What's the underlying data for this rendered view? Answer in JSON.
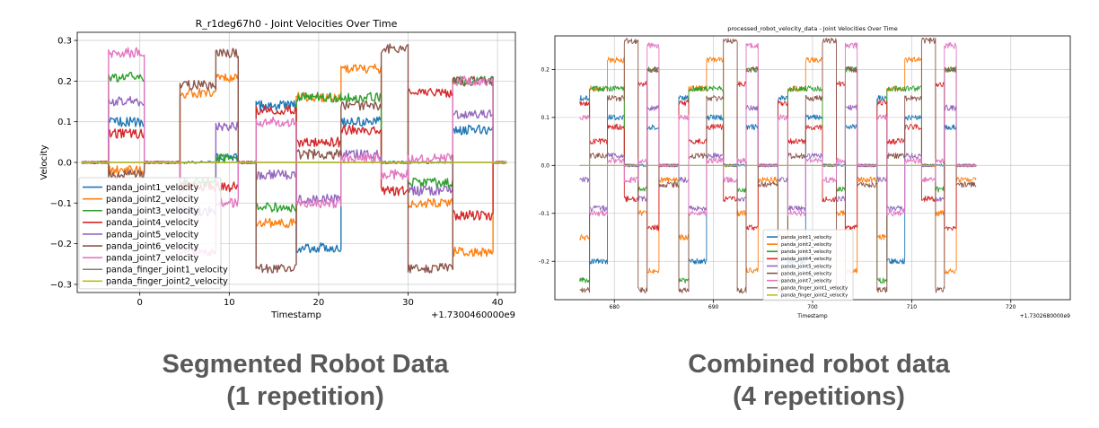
{
  "captions": {
    "left": {
      "line1": "Segmented Robot Data",
      "line2": "(1 repetition)"
    },
    "right": {
      "line1": "Combined robot data",
      "line2": "(4 repetitions)"
    }
  },
  "chart_data": [
    {
      "type": "line",
      "title": "R_r1deg67h0 - Joint Velocities Over Time",
      "xlabel": "Timestamp",
      "ylabel": "Velocity",
      "x_offset_label": "+1.7300460000e9",
      "xlim": [
        -7,
        42
      ],
      "ylim": [
        -0.32,
        0.32
      ],
      "xticks": [
        0,
        10,
        20,
        30,
        40
      ],
      "xtick_labels": [
        "0",
        "10",
        "20",
        "30",
        "40"
      ],
      "yticks": [
        -0.3,
        -0.2,
        -0.1,
        0.0,
        0.1,
        0.2,
        0.3
      ],
      "ytick_labels": [
        "−0.3",
        "−0.2",
        "−0.1",
        "0.0",
        "0.1",
        "0.2",
        "0.3"
      ],
      "grid": true,
      "legend_position": "lower-left",
      "segments": [
        [
          -6.5,
          -3.5
        ],
        [
          -3.5,
          0.5
        ],
        [
          0.5,
          4.5
        ],
        [
          4.5,
          8.5
        ],
        [
          8.5,
          11
        ],
        [
          11,
          13
        ],
        [
          13,
          17.5
        ],
        [
          17.5,
          22.5
        ],
        [
          22.5,
          27
        ],
        [
          27,
          30
        ],
        [
          30,
          35
        ],
        [
          35,
          39.5
        ],
        [
          39.5,
          41
        ]
      ],
      "series": [
        {
          "name": "panda_joint1_velocity",
          "color": "#1f77b4",
          "values": [
            0,
            0.1,
            0,
            0,
            0.01,
            0,
            0.14,
            -0.21,
            0.1,
            0,
            0,
            0.08,
            0
          ]
        },
        {
          "name": "panda_joint2_velocity",
          "color": "#ff7f0e",
          "values": [
            0,
            -0.02,
            0,
            0.17,
            0.21,
            0,
            -0.15,
            0.16,
            0.23,
            0,
            -0.1,
            -0.22,
            0
          ]
        },
        {
          "name": "panda_joint3_velocity",
          "color": "#2ca02c",
          "values": [
            0,
            0.21,
            0,
            -0.05,
            0.01,
            0,
            -0.11,
            0.16,
            0.16,
            0,
            -0.05,
            0.2,
            0
          ]
        },
        {
          "name": "panda_joint4_velocity",
          "color": "#d62728",
          "values": [
            0,
            0.07,
            0,
            -0.06,
            -0.06,
            0,
            0.13,
            0.05,
            0.08,
            -0.07,
            0.17,
            -0.13,
            0
          ]
        },
        {
          "name": "panda_joint5_velocity",
          "color": "#9467bd",
          "values": [
            0,
            0.15,
            0,
            -0.12,
            0.09,
            0,
            -0.03,
            -0.09,
            0.02,
            0,
            -0.07,
            0.12,
            0
          ]
        },
        {
          "name": "panda_joint6_velocity",
          "color": "#8c564b",
          "values": [
            0,
            -0.03,
            0,
            0.19,
            0.27,
            0,
            -0.26,
            0.02,
            0.14,
            0.28,
            -0.26,
            0.2,
            0
          ]
        },
        {
          "name": "panda_joint7_velocity",
          "color": "#e377c2",
          "values": [
            0,
            0.27,
            0,
            -0.22,
            -0.1,
            0,
            0.1,
            -0.1,
            0.01,
            -0.03,
            0.01,
            0.2,
            0
          ]
        },
        {
          "name": "panda_finger_joint1_velocity",
          "color": "#7f7f7f",
          "values": [
            0,
            0,
            0,
            0,
            0,
            0,
            0,
            0,
            0,
            0,
            0,
            0,
            0
          ]
        },
        {
          "name": "panda_finger_joint2_velocity",
          "color": "#bcbd22",
          "values": [
            0,
            0,
            0,
            0,
            0,
            0,
            0,
            0,
            0,
            0,
            0,
            0,
            0
          ]
        }
      ]
    },
    {
      "type": "line",
      "title": "processed_robot_velocity_data - Joint Velocities Over Time",
      "xlabel": "Timestamp",
      "ylabel": "velocity",
      "x_offset_label": "+1.7302680000e9",
      "xlim": [
        674,
        726
      ],
      "ylim": [
        -0.28,
        0.27
      ],
      "xticks": [
        680,
        690,
        700,
        710,
        720
      ],
      "xtick_labels": [
        "680",
        "690",
        "700",
        "710",
        "720"
      ],
      "yticks": [
        -0.2,
        -0.1,
        0.0,
        0.1,
        0.2
      ],
      "ytick_labels": [
        "−0.2",
        "−0.1",
        "0.0",
        "0.1",
        "0.2"
      ],
      "grid": true,
      "legend_position": "lower-center",
      "repeats": 4,
      "segments": [
        [
          676.5,
          677.5
        ],
        [
          677.5,
          679.3
        ],
        [
          679.3,
          681.0
        ],
        [
          681.0,
          682.4
        ],
        [
          682.4,
          683.3
        ],
        [
          683.3,
          684.5
        ],
        [
          684.5,
          686.5
        ]
      ],
      "series": [
        {
          "name": "panda_joint1_velocity",
          "color": "#1f77b4",
          "values": [
            0.14,
            -0.2,
            0.1,
            0,
            0,
            0.08,
            0
          ]
        },
        {
          "name": "panda_joint2_velocity",
          "color": "#ff7f0e",
          "values": [
            -0.15,
            0.16,
            0.22,
            0,
            -0.1,
            -0.22,
            -0.03
          ]
        },
        {
          "name": "panda_joint3_velocity",
          "color": "#2ca02c",
          "values": [
            -0.24,
            0.16,
            0.16,
            0,
            -0.05,
            0.2,
            0
          ]
        },
        {
          "name": "panda_joint4_velocity",
          "color": "#d62728",
          "values": [
            0.13,
            0.05,
            0.08,
            -0.07,
            0.17,
            -0.13,
            0
          ]
        },
        {
          "name": "panda_joint5_velocity",
          "color": "#9467bd",
          "values": [
            -0.03,
            -0.09,
            0.02,
            0,
            -0.07,
            0.12,
            0
          ]
        },
        {
          "name": "panda_joint6_velocity",
          "color": "#8c564b",
          "values": [
            -0.26,
            0.02,
            0.14,
            0.26,
            -0.26,
            0.2,
            -0.04
          ]
        },
        {
          "name": "panda_joint7_velocity",
          "color": "#e377c2",
          "values": [
            0.1,
            -0.1,
            0.01,
            -0.03,
            0.01,
            0.25,
            0
          ]
        },
        {
          "name": "panda_finger_joint1_velocity",
          "color": "#7f7f7f",
          "values": [
            0,
            0,
            0,
            0,
            0,
            0,
            0
          ]
        },
        {
          "name": "panda_finger_joint2_velocity",
          "color": "#bcbd22",
          "values": [
            0,
            0,
            0,
            0,
            0,
            0,
            0
          ]
        }
      ]
    }
  ]
}
